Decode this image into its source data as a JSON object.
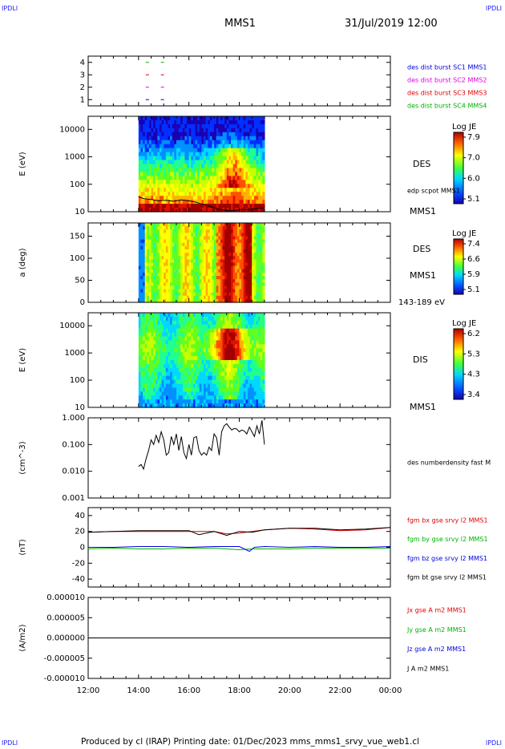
{
  "corner_label": "IPDLI",
  "header": {
    "title": "MMS1",
    "date": "31/Jul/2019 12:00"
  },
  "footer": {
    "text": "Produced by cl (IRAP)   Printing date: 01/Dec/2023   mms_mms1_srvy_vue_web1.cl"
  },
  "colors": {
    "red": "#e00000",
    "green": "#00b000",
    "blue": "#0000e0",
    "magenta": "#e000e0",
    "black": "#000000"
  },
  "chart_data": [
    {
      "type": "scatter",
      "title": "",
      "ylim": [
        0.5,
        4.5
      ],
      "y_ticks": [
        "4",
        "3",
        "2",
        "1"
      ],
      "legend": [
        {
          "name": "des dist burst SC1 MMS1",
          "color": "#0000e0"
        },
        {
          "name": "des dist burst SC2 MMS2",
          "color": "#e000e0"
        },
        {
          "name": "des dist burst SC3 MMS3",
          "color": "#e00000"
        },
        {
          "name": "des dist burst SC4 MMS4",
          "color": "#00b000"
        }
      ],
      "series": [
        {
          "name": "SC1",
          "y": 1,
          "x": [
            14.35,
            14.95
          ],
          "color": "#0000e0"
        },
        {
          "name": "SC2",
          "y": 2,
          "x": [
            14.35,
            14.95
          ],
          "color": "#e000e0"
        },
        {
          "name": "SC3",
          "y": 3,
          "x": [
            14.35,
            14.95
          ],
          "color": "#e00000"
        },
        {
          "name": "SC4",
          "y": 4,
          "x": [
            14.35,
            14.95
          ],
          "color": "#00b000"
        }
      ]
    },
    {
      "type": "heatmap",
      "ylabel": "E (eV)",
      "y_scale": "log",
      "ylim": [
        10,
        30000
      ],
      "y_ticks": [
        "10000",
        "1000",
        "100",
        "10"
      ],
      "data_x_range": [
        14.0,
        19.0
      ],
      "colorbar": {
        "label": "Log JE",
        "ticks": [
          "7.9",
          "7.0",
          "6.0",
          "5.1"
        ]
      },
      "labels_right": [
        "DES",
        "edp scpot MMS1",
        "MMS1"
      ],
      "overlay_line": {
        "name": "edp scpot MMS1",
        "x": [
          14.0,
          14.2,
          14.5,
          14.8,
          15.1,
          15.4,
          15.7,
          16.0,
          16.3,
          16.6,
          16.9,
          17.2,
          17.5,
          17.8,
          18.1,
          18.4,
          18.7,
          19.0
        ],
        "y": [
          35,
          30,
          28,
          25,
          26,
          24,
          27,
          25,
          22,
          18,
          15,
          12,
          11,
          11,
          12,
          12,
          13,
          14
        ]
      }
    },
    {
      "type": "heatmap",
      "ylabel": "a (deg)",
      "ylim": [
        0,
        180
      ],
      "y_ticks": [
        "150",
        "100",
        "50",
        "0"
      ],
      "data_x_range": [
        14.0,
        19.0
      ],
      "colorbar": {
        "label": "Log JE",
        "ticks": [
          "7.4",
          "6.6",
          "5.9",
          "5.1"
        ]
      },
      "labels_right": [
        "DES",
        "MMS1",
        "143-189 eV"
      ]
    },
    {
      "type": "heatmap",
      "ylabel": "E (eV)",
      "y_scale": "log",
      "ylim": [
        10,
        30000
      ],
      "y_ticks": [
        "10000",
        "1000",
        "100",
        "10"
      ],
      "data_x_range": [
        14.0,
        19.0
      ],
      "colorbar": {
        "label": "Log JE",
        "ticks": [
          "6.2",
          "5.3",
          "4.3",
          "3.4"
        ]
      },
      "labels_right": [
        "DIS",
        "MMS1"
      ]
    },
    {
      "type": "line",
      "ylabel": "(cm^-3)",
      "y_scale": "log",
      "ylim": [
        0.001,
        1.0
      ],
      "y_ticks": [
        "1.000",
        "0.100",
        "0.010",
        "0.001"
      ],
      "legend": [
        {
          "name": "des numberdensity fast M",
          "color": "#000000"
        }
      ],
      "series": [
        {
          "name": "des numberdensity fast M",
          "color": "#000000",
          "x": [
            14.0,
            14.1,
            14.2,
            14.3,
            14.4,
            14.5,
            14.6,
            14.7,
            14.8,
            14.9,
            15.0,
            15.1,
            15.2,
            15.3,
            15.4,
            15.5,
            15.6,
            15.7,
            15.8,
            15.9,
            16.0,
            16.1,
            16.2,
            16.3,
            16.4,
            16.5,
            16.6,
            16.7,
            16.8,
            16.9,
            17.0,
            17.1,
            17.2,
            17.3,
            17.4,
            17.5,
            17.6,
            17.7,
            17.8,
            17.9,
            18.0,
            18.1,
            18.2,
            18.3,
            18.4,
            18.5,
            18.6,
            18.7,
            18.8,
            18.9,
            19.0
          ],
          "y": [
            0.015,
            0.018,
            0.012,
            0.03,
            0.06,
            0.15,
            0.1,
            0.22,
            0.12,
            0.3,
            0.15,
            0.04,
            0.05,
            0.2,
            0.1,
            0.25,
            0.06,
            0.2,
            0.05,
            0.03,
            0.1,
            0.04,
            0.18,
            0.2,
            0.06,
            0.04,
            0.05,
            0.04,
            0.08,
            0.06,
            0.25,
            0.18,
            0.04,
            0.3,
            0.5,
            0.6,
            0.45,
            0.35,
            0.4,
            0.38,
            0.3,
            0.35,
            0.32,
            0.25,
            0.45,
            0.3,
            0.2,
            0.5,
            0.25,
            0.8,
            0.1
          ]
        }
      ]
    },
    {
      "type": "line",
      "ylabel": "(nT)",
      "ylim": [
        -50,
        50
      ],
      "y_ticks": [
        "40",
        "20",
        "0",
        "-20",
        "-40"
      ],
      "legend": [
        {
          "name": "fgm bx gse srvy l2 MMS1",
          "color": "#e00000"
        },
        {
          "name": "fgm by gse srvy l2 MMS1",
          "color": "#00b000"
        },
        {
          "name": "fgm bz gse srvy l2 MMS1",
          "color": "#0000e0"
        },
        {
          "name": "fgm bt gse srvy l2 MMS1",
          "color": "#000000"
        }
      ],
      "series": [
        {
          "name": "bx",
          "color": "#e00000",
          "x": [
            12,
            13,
            14,
            15,
            16,
            17,
            17.5,
            18,
            19,
            20,
            21,
            22,
            23,
            24
          ],
          "y": [
            19,
            20,
            20,
            20,
            20,
            20,
            17,
            18,
            22,
            24,
            23,
            21,
            22,
            25
          ]
        },
        {
          "name": "bt",
          "color": "#000000",
          "x": [
            12,
            13,
            14,
            15,
            16,
            16.4,
            17,
            17.5,
            18,
            18.5,
            19,
            20,
            21,
            22,
            23,
            24
          ],
          "y": [
            19,
            20,
            21,
            21,
            21,
            16,
            20,
            15,
            20,
            19,
            22,
            24,
            24,
            22,
            23,
            25
          ]
        },
        {
          "name": "by",
          "color": "#00b000",
          "x": [
            12,
            13,
            14,
            15,
            16,
            17,
            18,
            18.5,
            19,
            20,
            21,
            22,
            23,
            24
          ],
          "y": [
            -2,
            -1,
            -2,
            -2,
            -1,
            -1,
            -3,
            -2,
            -2,
            -2,
            -1,
            -1,
            -1,
            -1
          ]
        },
        {
          "name": "bz",
          "color": "#0000e0",
          "x": [
            12,
            13,
            14,
            15,
            16,
            17,
            18,
            18.4,
            18.6,
            19,
            20,
            21,
            22,
            23,
            24
          ],
          "y": [
            0,
            0,
            1,
            1,
            0,
            1,
            1,
            -5,
            0,
            1,
            0,
            1,
            0,
            0,
            1
          ]
        }
      ]
    },
    {
      "type": "line",
      "ylabel": "(A/m2)",
      "ylim": [
        -1e-05,
        1e-05
      ],
      "y_ticks": [
        "0.000010",
        "0.000005",
        "0.000000",
        "-0.000005",
        "-0.000010"
      ],
      "legend": [
        {
          "name": "Jx gse A m2 MMS1",
          "color": "#e00000"
        },
        {
          "name": "Jy gse A m2 MMS1",
          "color": "#00b000"
        },
        {
          "name": "Jz gse A m2 MMS1",
          "color": "#0000e0"
        },
        {
          "name": "J A m2 MMS1",
          "color": "#000000"
        }
      ],
      "series": [
        {
          "name": "J",
          "color": "#000000",
          "x": [
            12,
            24
          ],
          "y": [
            0,
            0
          ]
        }
      ]
    }
  ],
  "x_axis": {
    "range": [
      12,
      24
    ],
    "tick_labels": [
      "12:00",
      "14:00",
      "16:00",
      "18:00",
      "20:00",
      "22:00",
      "00:00"
    ]
  }
}
